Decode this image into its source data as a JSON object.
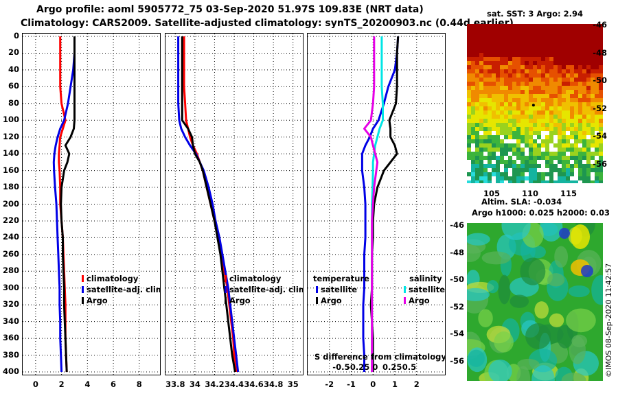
{
  "header": {
    "line1": "Argo profile: aoml 5905772_75 03-Sep-2020 51.97S 109.83E (NRT data)",
    "line2": "Climatology: CARS2009. Satellite-adjusted climatology: synTS_20200903.nc (0.44d earlier)"
  },
  "depth_ticks": [
    "0",
    "20",
    "40",
    "60",
    "80",
    "100",
    "120",
    "140",
    "160",
    "180",
    "200",
    "220",
    "240",
    "260",
    "280",
    "300",
    "320",
    "340",
    "360",
    "380",
    "400"
  ],
  "chart_data": [
    {
      "type": "line",
      "name": "temperature-profile",
      "xlabel": "",
      "ylabel": "",
      "xlim": [
        -1,
        9.6
      ],
      "ylim": [
        0,
        400
      ],
      "xticks": [
        "0",
        "2",
        "4",
        "6",
        "8"
      ],
      "xtick_values": [
        0,
        2,
        4,
        6,
        8
      ],
      "depth": [
        0,
        20,
        40,
        60,
        80,
        100,
        110,
        120,
        130,
        140,
        150,
        160,
        180,
        200,
        220,
        240,
        260,
        280,
        300,
        320,
        340,
        360,
        380,
        400
      ],
      "series": [
        {
          "name": "climatology",
          "color": "#ff0000",
          "values": [
            1.9,
            1.9,
            1.9,
            1.9,
            2.0,
            2.3,
            2.1,
            1.9,
            1.85,
            1.8,
            1.8,
            1.85,
            1.9,
            1.9,
            2.0,
            2.1,
            2.15,
            2.2,
            2.25,
            2.3,
            2.3,
            2.3,
            2.35,
            2.4
          ]
        },
        {
          "name": "satellite-adj. clim.",
          "color": "#0000e6",
          "values": [
            3.0,
            3.0,
            2.9,
            2.7,
            2.5,
            2.2,
            1.9,
            1.7,
            1.55,
            1.45,
            1.4,
            1.42,
            1.5,
            1.6,
            1.65,
            1.7,
            1.75,
            1.8,
            1.85,
            1.85,
            1.9,
            1.9,
            1.95,
            2.0
          ]
        },
        {
          "name": "Argo",
          "color": "#000000",
          "values": [
            3.0,
            3.0,
            3.0,
            3.0,
            3.0,
            3.0,
            2.95,
            2.7,
            2.3,
            2.6,
            2.45,
            2.2,
            2.0,
            1.95,
            2.0,
            2.1,
            2.1,
            2.15,
            2.2,
            2.2,
            2.25,
            2.3,
            2.35,
            2.4
          ]
        }
      ],
      "legend": [
        "climatology",
        "satellite-adj. clim.",
        "Argo"
      ]
    },
    {
      "type": "line",
      "name": "salinity-profile",
      "xlim": [
        33.7,
        35.1
      ],
      "ylim": [
        0,
        400
      ],
      "xticks": [
        "33.8",
        "34",
        "34.2",
        "34.4",
        "34.6",
        "34.8",
        "35"
      ],
      "xtick_values": [
        33.8,
        34,
        34.2,
        34.4,
        34.6,
        34.8,
        35
      ],
      "depth": [
        0,
        20,
        40,
        60,
        80,
        100,
        110,
        120,
        130,
        140,
        150,
        160,
        180,
        200,
        220,
        240,
        260,
        280,
        300,
        320,
        340,
        360,
        380,
        400
      ],
      "series": [
        {
          "name": "climatology",
          "color": "#ff0000",
          "values": [
            33.89,
            33.89,
            33.89,
            33.89,
            33.9,
            33.91,
            33.93,
            33.95,
            33.98,
            34.02,
            34.05,
            34.08,
            34.12,
            34.16,
            34.2,
            34.24,
            34.27,
            34.3,
            34.33,
            34.35,
            34.37,
            34.39,
            34.4,
            34.42
          ]
        },
        {
          "name": "satellite-adj. clim.",
          "color": "#0000e6",
          "values": [
            33.83,
            33.83,
            33.83,
            33.83,
            33.83,
            33.84,
            33.86,
            33.9,
            33.95,
            34.01,
            34.05,
            34.09,
            34.14,
            34.18,
            34.21,
            34.25,
            34.28,
            34.31,
            34.34,
            34.36,
            34.38,
            34.4,
            34.42,
            34.44
          ]
        },
        {
          "name": "Argo",
          "color": "#000000",
          "values": [
            33.87,
            33.87,
            33.87,
            33.87,
            33.87,
            33.87,
            33.93,
            33.97,
            33.98,
            34.0,
            34.05,
            34.08,
            34.12,
            34.16,
            34.2,
            34.23,
            34.26,
            34.28,
            34.3,
            34.32,
            34.34,
            34.36,
            34.38,
            34.41
          ]
        }
      ],
      "legend": [
        "climatology",
        "satellite-adj. clim.",
        "Argo"
      ]
    },
    {
      "type": "line",
      "name": "difference-from-climatology",
      "xlabel": "S difference from climatology",
      "xlim": [
        -3,
        3.3
      ],
      "ylim": [
        0,
        400
      ],
      "xticks": [
        "-2",
        "-1",
        "0",
        "1",
        "2"
      ],
      "xtick_values": [
        -2,
        -1,
        0,
        1,
        2
      ],
      "secondary_xticks": [
        "-0.5",
        "-0.25",
        "0",
        "0.25",
        "0.5"
      ],
      "depth": [
        0,
        20,
        40,
        60,
        80,
        100,
        110,
        120,
        130,
        140,
        150,
        160,
        180,
        200,
        220,
        240,
        260,
        280,
        300,
        320,
        340,
        360,
        380,
        400
      ],
      "series": [
        {
          "name": "temperature satellite",
          "color": "#0000e6",
          "values": [
            1.15,
            1.1,
            1.0,
            0.7,
            0.5,
            0.25,
            0.0,
            -0.15,
            -0.35,
            -0.5,
            -0.5,
            -0.5,
            -0.4,
            -0.35,
            -0.35,
            -0.35,
            -0.4,
            -0.4,
            -0.4,
            -0.45,
            -0.45,
            -0.45,
            -0.4,
            -0.4
          ]
        },
        {
          "name": "temperature Argo",
          "color": "#000000",
          "values": [
            1.15,
            1.1,
            1.1,
            1.1,
            1.05,
            0.75,
            0.8,
            0.8,
            1.0,
            1.1,
            0.8,
            0.5,
            0.2,
            0.05,
            0.0,
            0.0,
            -0.05,
            -0.05,
            -0.05,
            -0.1,
            -0.05,
            0.0,
            0.0,
            0.0
          ]
        },
        {
          "name": "salinity satellite",
          "color": "#00e5e5",
          "values": [
            0.4,
            0.4,
            0.4,
            0.4,
            0.45,
            0.45,
            0.3,
            0.2,
            0.1,
            0.05,
            0.0,
            0.0,
            -0.02,
            -0.05,
            -0.05,
            -0.05,
            -0.05,
            -0.05,
            -0.05,
            -0.05,
            -0.05,
            -0.05,
            -0.05,
            -0.05
          ]
        },
        {
          "name": "salinity Argo",
          "color": "#e600e6",
          "values": [
            0.05,
            0.05,
            0.05,
            0.05,
            0.0,
            -0.1,
            -0.4,
            -0.1,
            0.0,
            0.1,
            0.2,
            0.15,
            0.05,
            0.0,
            -0.05,
            -0.05,
            -0.05,
            -0.05,
            -0.05,
            -0.05,
            -0.05,
            -0.05,
            -0.05,
            -0.05
          ]
        }
      ]
    }
  ],
  "diff_legend": {
    "temperature_title": "temperature",
    "salinity_title": "salinity",
    "satellite": "satellite",
    "argo": "Argo"
  },
  "sst_map": {
    "title": "sat. SST: 3 Argo: 2.94",
    "lat_ticks": [
      "-46",
      "-48",
      "-50",
      "-52",
      "-54",
      "-56"
    ],
    "lon_ticks": [
      "105",
      "110",
      "115"
    ]
  },
  "sla_map": {
    "title_line1": "Altim. SLA: -0.034",
    "title_line2": "Argo h1000: 0.025 h2000: 0.03",
    "lat_ticks": [
      "-46",
      "-48",
      "-50",
      "-52",
      "-54",
      "-56"
    ]
  },
  "credit": "©IMOS 08-Sep-2020 11:42:57",
  "colors": {
    "climatology": "#ff0000",
    "satellite": "#0000e6",
    "argo": "#000000",
    "sal_satellite": "#00e5e5",
    "sal_argo": "#e600e6"
  }
}
